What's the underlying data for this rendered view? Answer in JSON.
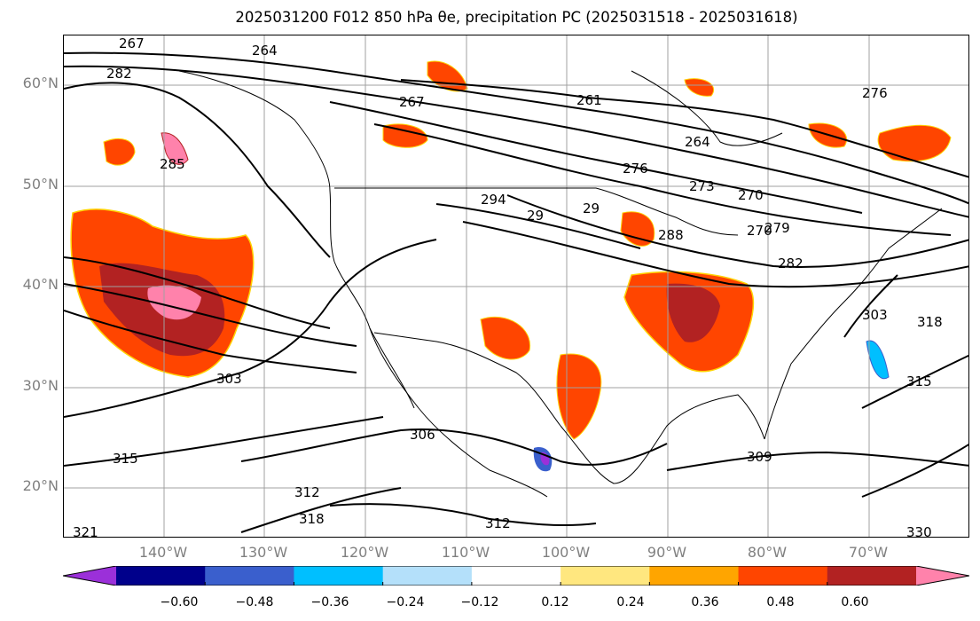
{
  "figure": {
    "title": "2025031200 F012 850 hPa θe, precipitation PC (2025031518 - 2025031618)"
  },
  "map": {
    "projection": "Plate Carrée",
    "lon_range": [
      -150,
      -60
    ],
    "lat_range": [
      15,
      65
    ],
    "grid": true,
    "lat_labels": [
      "60°N",
      "50°N",
      "40°N",
      "30°N",
      "20°N"
    ],
    "lon_labels": [
      "140°W",
      "130°W",
      "120°W",
      "110°W",
      "100°W",
      "90°W",
      "80°W",
      "70°W"
    ],
    "contour_labels": [
      "267",
      "264",
      "282",
      "267",
      "261",
      "264",
      "276",
      "273",
      "270",
      "294",
      "29",
      "29",
      "288",
      "279",
      "282",
      "303",
      "318",
      "315",
      "306",
      "303",
      "312",
      "318",
      "312",
      "315",
      "309",
      "330",
      "321",
      "276",
      "285",
      "270"
    ],
    "features": "coastlines, country and state borders"
  },
  "colorbar": {
    "orientation": "horizontal",
    "extend": "both",
    "tick_labels": [
      "−0.60",
      "−0.48",
      "−0.36",
      "−0.24",
      "−0.12",
      "0.12",
      "0.24",
      "0.36",
      "0.48",
      "0.60"
    ],
    "bins": [
      {
        "color": "#9b30d9"
      },
      {
        "color": "#00008b"
      },
      {
        "color": "#3a5fcd"
      },
      {
        "color": "#00bfff"
      },
      {
        "color": "#b4e0fa"
      },
      {
        "color": "#ffffff"
      },
      {
        "color": "#ffe77f"
      },
      {
        "color": "#ffa500"
      },
      {
        "color": "#ff4500"
      },
      {
        "color": "#b22222"
      },
      {
        "color": "#ff82ab"
      }
    ]
  }
}
